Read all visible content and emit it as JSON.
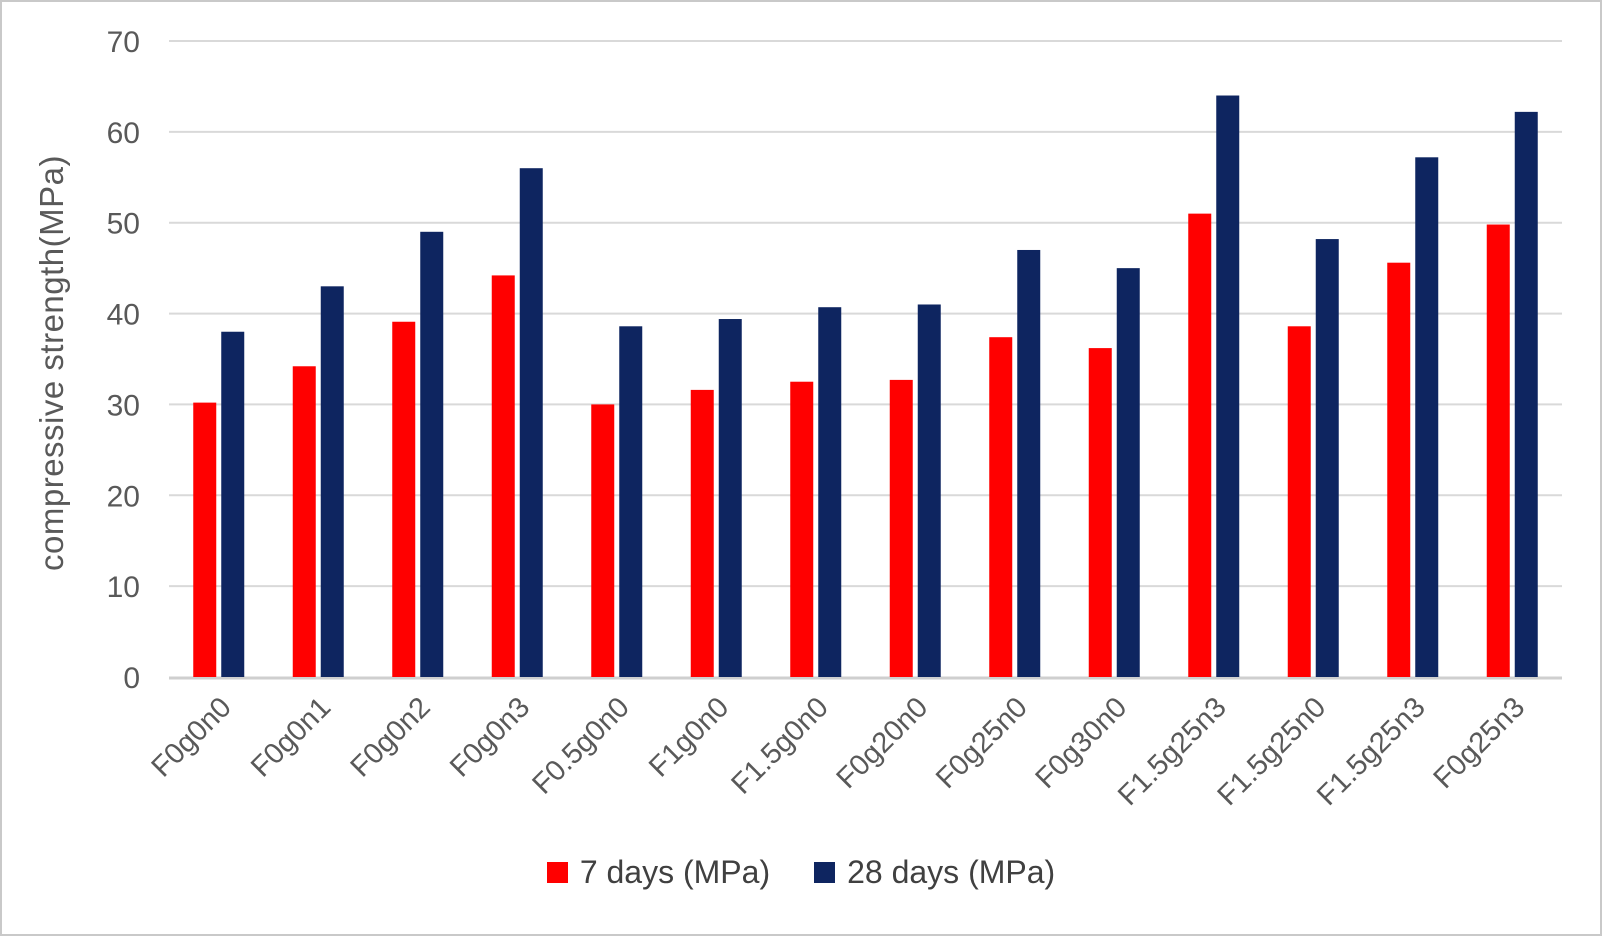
{
  "chart_data": {
    "type": "bar",
    "title": "",
    "xlabel": "",
    "ylabel": "compressive strength(MPa)",
    "ylim": [
      0,
      70
    ],
    "y_ticks": [
      0,
      10,
      20,
      30,
      40,
      50,
      60,
      70
    ],
    "grid": true,
    "legend_position": "bottom",
    "categories": [
      "F0g0n0",
      "F0g0n1",
      "F0g0n2",
      "F0g0n3",
      "F0.5g0n0",
      "F1g0n0",
      "F1.5g0n0",
      "F0g20n0",
      "F0g25n0",
      "F0g30n0",
      "F1.5g25n3",
      "F1.5g25n0",
      "F1.5g25n3",
      "F0g25n3"
    ],
    "series": [
      {
        "name": "7 days (MPa)",
        "color": "#FF0000",
        "values": [
          30.2,
          34.2,
          39.1,
          44.2,
          30.0,
          31.6,
          32.5,
          32.7,
          37.4,
          36.2,
          51.0,
          38.6,
          45.6,
          49.8
        ]
      },
      {
        "name": "28 days (MPa)",
        "color": "#0E2560",
        "values": [
          38.0,
          43.0,
          49.0,
          56.0,
          38.6,
          39.4,
          40.7,
          41.0,
          47.0,
          45.0,
          64.0,
          48.2,
          57.2,
          62.2
        ]
      }
    ]
  },
  "colors": {
    "gridline": "#D9D9D9",
    "axis_line": "#CFCFCF",
    "tick_text": "#595959",
    "category_text": "#595959",
    "legend_text": "#404040",
    "frame_border": "#C9C9C9",
    "background": "#FFFFFF"
  }
}
